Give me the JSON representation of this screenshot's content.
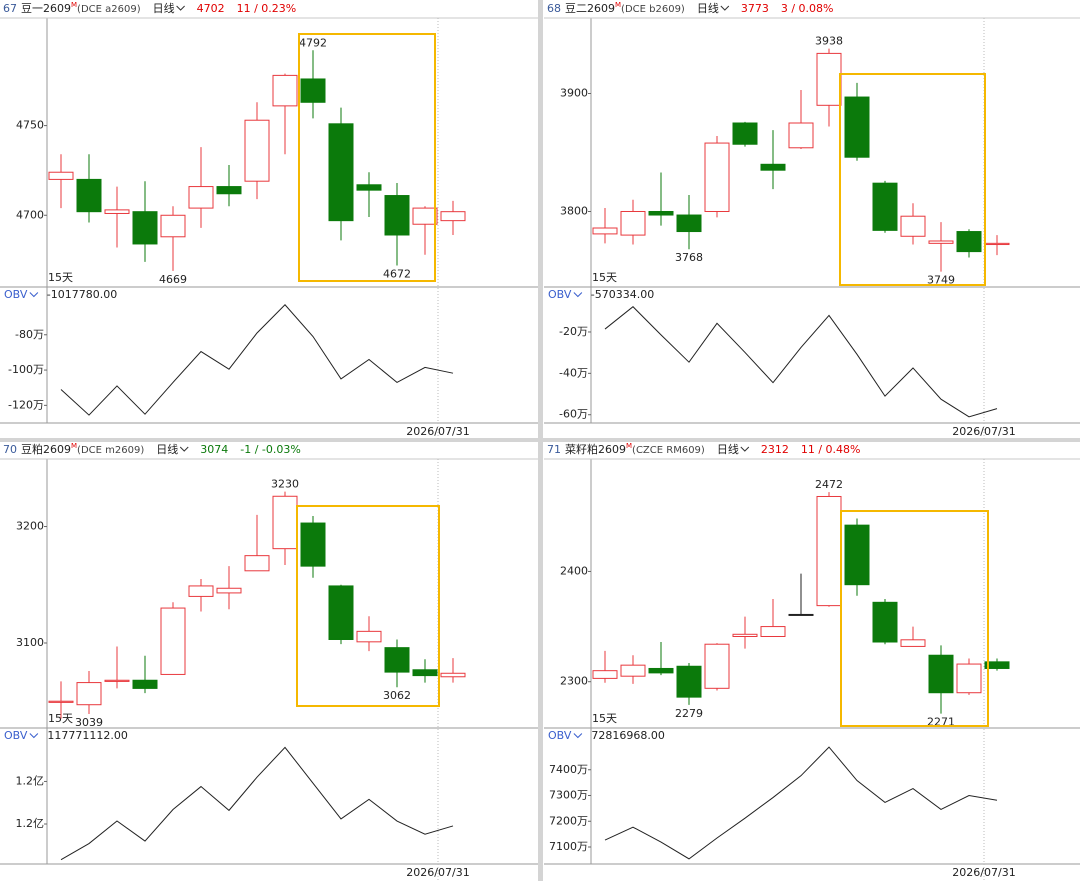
{
  "chart_data": [
    {
      "type": "candlestick",
      "index": "67",
      "name": "豆一2609",
      "name_sup": "M",
      "code": "(DCE a2609)",
      "period": "日线",
      "last": 4702,
      "change": "11 / 0.23%",
      "change_color": "#e00000",
      "range_label": "15天",
      "date": "2026/07/31",
      "up_color": "#e8383d",
      "down_color": "#0b7a0b",
      "flat_color": "#222222",
      "open": [
        4720,
        4720,
        4701,
        4702,
        4688,
        4704,
        4716,
        4719,
        4761,
        4776,
        4751,
        4717,
        4711,
        4695,
        4697
      ],
      "high": [
        4734,
        4734,
        4716,
        4719,
        4705,
        4738,
        4728,
        4763,
        4779,
        4792,
        4760,
        4724,
        4718,
        4705,
        4708
      ],
      "low": [
        4704,
        4696,
        4682,
        4674,
        4669,
        4693,
        4705,
        4709,
        4734,
        4754,
        4686,
        4699,
        4672,
        4678,
        4689
      ],
      "close": [
        4724,
        4702,
        4703,
        4684,
        4700,
        4716,
        4712,
        4753,
        4778,
        4763,
        4697,
        4714,
        4689,
        4704,
        4702
      ],
      "high_labels": [
        null,
        null,
        null,
        null,
        null,
        null,
        null,
        null,
        null,
        "4792",
        null,
        null,
        null,
        null,
        null
      ],
      "low_labels": [
        null,
        null,
        null,
        null,
        "4669",
        null,
        null,
        null,
        null,
        null,
        null,
        null,
        "4672",
        null,
        null
      ],
      "ylim": [
        4660,
        4810
      ],
      "yticks": [
        4700,
        4750
      ],
      "indicator": {
        "name": "OBV",
        "value_text": "-1017780.00",
        "color": "#222222",
        "values": [
          -111,
          -125.5,
          -109,
          -125,
          -107,
          -89.5,
          -99.5,
          -79,
          -63,
          -81,
          -105,
          -94,
          -107,
          -98.5,
          -101.778
        ],
        "ylim": [
          -130,
          -62
        ],
        "yticks": [
          {
            "value": -120,
            "label": "-120万"
          },
          {
            "value": -100,
            "label": "-100万"
          },
          {
            "value": -80,
            "label": "-80万"
          }
        ]
      }
    },
    {
      "type": "candlestick",
      "index": "68",
      "name": "豆二2609",
      "name_sup": "M",
      "code": "(DCE b2609)",
      "period": "日线",
      "last": 3773,
      "change": "3 / 0.08%",
      "change_color": "#e00000",
      "range_label": "15天",
      "date": "2026/07/31",
      "up_color": "#e8383d",
      "down_color": "#0b7a0b",
      "flat_color": "#222222",
      "open": [
        3781,
        3780,
        3800,
        3797,
        3800,
        3875,
        3840,
        3854,
        3890,
        3897,
        3824,
        3779,
        3773,
        3783,
        3772
      ],
      "high": [
        3803,
        3810,
        3833,
        3814,
        3864,
        3876,
        3869,
        3903,
        3938,
        3909,
        3826,
        3807,
        3791,
        3785,
        3780
      ],
      "low": [
        3773,
        3772,
        3788,
        3768,
        3795,
        3855,
        3819,
        3853,
        3872,
        3843,
        3782,
        3772,
        3749,
        3761,
        3763
      ],
      "close": [
        3786,
        3800,
        3797,
        3783,
        3858,
        3857,
        3835,
        3875,
        3934,
        3846,
        3784,
        3796,
        3775,
        3766,
        3773
      ],
      "high_labels": [
        null,
        null,
        null,
        null,
        null,
        null,
        null,
        null,
        "3938",
        null,
        null,
        null,
        null,
        null,
        null
      ],
      "low_labels": [
        null,
        null,
        null,
        "3768",
        null,
        null,
        null,
        null,
        null,
        null,
        null,
        null,
        "3749",
        null,
        null
      ],
      "ylim": [
        3736,
        3964
      ],
      "yticks": [
        3800,
        3900
      ],
      "indicator": {
        "name": "OBV",
        "value_text": "-570334.00",
        "color": "#222222",
        "values": [
          -18.6,
          -7.8,
          -21.4,
          -34.6,
          -15.8,
          -29.9,
          -44.5,
          -27.5,
          -12,
          -30.8,
          -51,
          -37.4,
          -52.5,
          -61,
          -57.0334
        ],
        "ylim": [
          -64,
          -6
        ],
        "yticks": [
          {
            "value": -60,
            "label": "-60万"
          },
          {
            "value": -40,
            "label": "-40万"
          },
          {
            "value": -20,
            "label": "-20万"
          }
        ]
      }
    },
    {
      "type": "candlestick",
      "index": "70",
      "name": "豆粕2609",
      "name_sup": "M",
      "code": "(DCE m2609)",
      "period": "日线",
      "last": 3074,
      "change": "-1 / -0.03%",
      "change_color": "#0b7a0b",
      "range_label": "15天",
      "date": "2026/07/31",
      "up_color": "#e8383d",
      "down_color": "#0b7a0b",
      "flat_color": "#222222",
      "open": [
        3049,
        3047,
        3067,
        3068,
        3073,
        3140,
        3143,
        3162,
        3181,
        3203,
        3149,
        3101,
        3096,
        3077,
        3071
      ],
      "high": [
        3067,
        3076,
        3097,
        3089,
        3135,
        3155,
        3166,
        3210,
        3230,
        3209,
        3150,
        3123,
        3103,
        3086,
        3087
      ],
      "low": [
        3035,
        3039,
        3061,
        3057,
        3073,
        3127,
        3129,
        3162,
        3167,
        3156,
        3099,
        3093,
        3062,
        3066,
        3066
      ],
      "close": [
        3050,
        3066,
        3068,
        3061,
        3130,
        3149,
        3147,
        3175,
        3226,
        3166,
        3103,
        3110,
        3075,
        3072,
        3074
      ],
      "high_labels": [
        null,
        null,
        null,
        null,
        null,
        null,
        null,
        null,
        "3230",
        null,
        null,
        null,
        null,
        null,
        null
      ],
      "low_labels": [
        null,
        "3039",
        null,
        null,
        null,
        null,
        null,
        null,
        null,
        null,
        null,
        null,
        "3062",
        null,
        null
      ],
      "ylim": [
        3027,
        3258
      ],
      "yticks": [
        3100,
        3200
      ],
      "indicator": {
        "name": "OBV",
        "value_text": "117771112.00",
        "color": "#222222",
        "values": [
          1.138,
          1.157,
          1.1835,
          1.16,
          1.197,
          1.224,
          1.196,
          1.235,
          1.27,
          1.228,
          1.186,
          1.209,
          1.1835,
          1.168,
          1.17771112
        ],
        "ylim": [
          1.133,
          1.274
        ],
        "yticks": [
          {
            "value": 1.18,
            "label": "1.2亿"
          },
          {
            "value": 1.23,
            "label": "1.2亿"
          }
        ]
      }
    },
    {
      "type": "candlestick",
      "index": "71",
      "name": "菜籽粕2609",
      "name_sup": "M",
      "code": "(CZCE RM609)",
      "period": "日线",
      "last": 2312,
      "change": "11 / 0.48%",
      "change_color": "#e00000",
      "range_label": "15天",
      "date": "2026/07/31",
      "up_color": "#e8383d",
      "down_color": "#0b7a0b",
      "flat_color": "#222222",
      "open": [
        2303,
        2305,
        2312,
        2314,
        2294,
        2341,
        2341,
        2361,
        2369,
        2442,
        2372,
        2332,
        2324,
        2290,
        2318
      ],
      "high": [
        2328,
        2324,
        2336,
        2317,
        2335,
        2359,
        2375,
        2398,
        2472,
        2448,
        2375,
        2350,
        2333,
        2321,
        2321
      ],
      "low": [
        2299,
        2298,
        2306,
        2279,
        2292,
        2330,
        2341,
        2361,
        2368,
        2378,
        2334,
        2332,
        2271,
        2288,
        2310
      ],
      "close": [
        2310,
        2315,
        2308,
        2286,
        2334,
        2343,
        2350,
        2361,
        2468,
        2388,
        2336,
        2338,
        2290,
        2316,
        2312
      ],
      "high_labels": [
        null,
        null,
        null,
        null,
        null,
        null,
        null,
        null,
        "2472",
        null,
        null,
        null,
        null,
        null,
        null
      ],
      "low_labels": [
        null,
        null,
        null,
        "2279",
        null,
        null,
        null,
        null,
        null,
        null,
        null,
        null,
        "2271",
        null,
        null
      ],
      "ylim": [
        2258,
        2502
      ],
      "yticks": [
        2300,
        2400
      ],
      "indicator": {
        "name": "OBV",
        "value_text": "72816968.00",
        "color": "#222222",
        "values": [
          7127,
          7177,
          7119,
          7054,
          7135,
          7212,
          7292,
          7377,
          7488,
          7358,
          7273,
          7327,
          7246,
          7300,
          7281.6968
        ],
        "ylim": [
          7034,
          7500
        ],
        "yticks": [
          {
            "value": 7100,
            "label": "7100万"
          },
          {
            "value": 7200,
            "label": "7200万"
          },
          {
            "value": 7300,
            "label": "7300万"
          },
          {
            "value": 7400,
            "label": "7400万"
          }
        ]
      }
    }
  ]
}
